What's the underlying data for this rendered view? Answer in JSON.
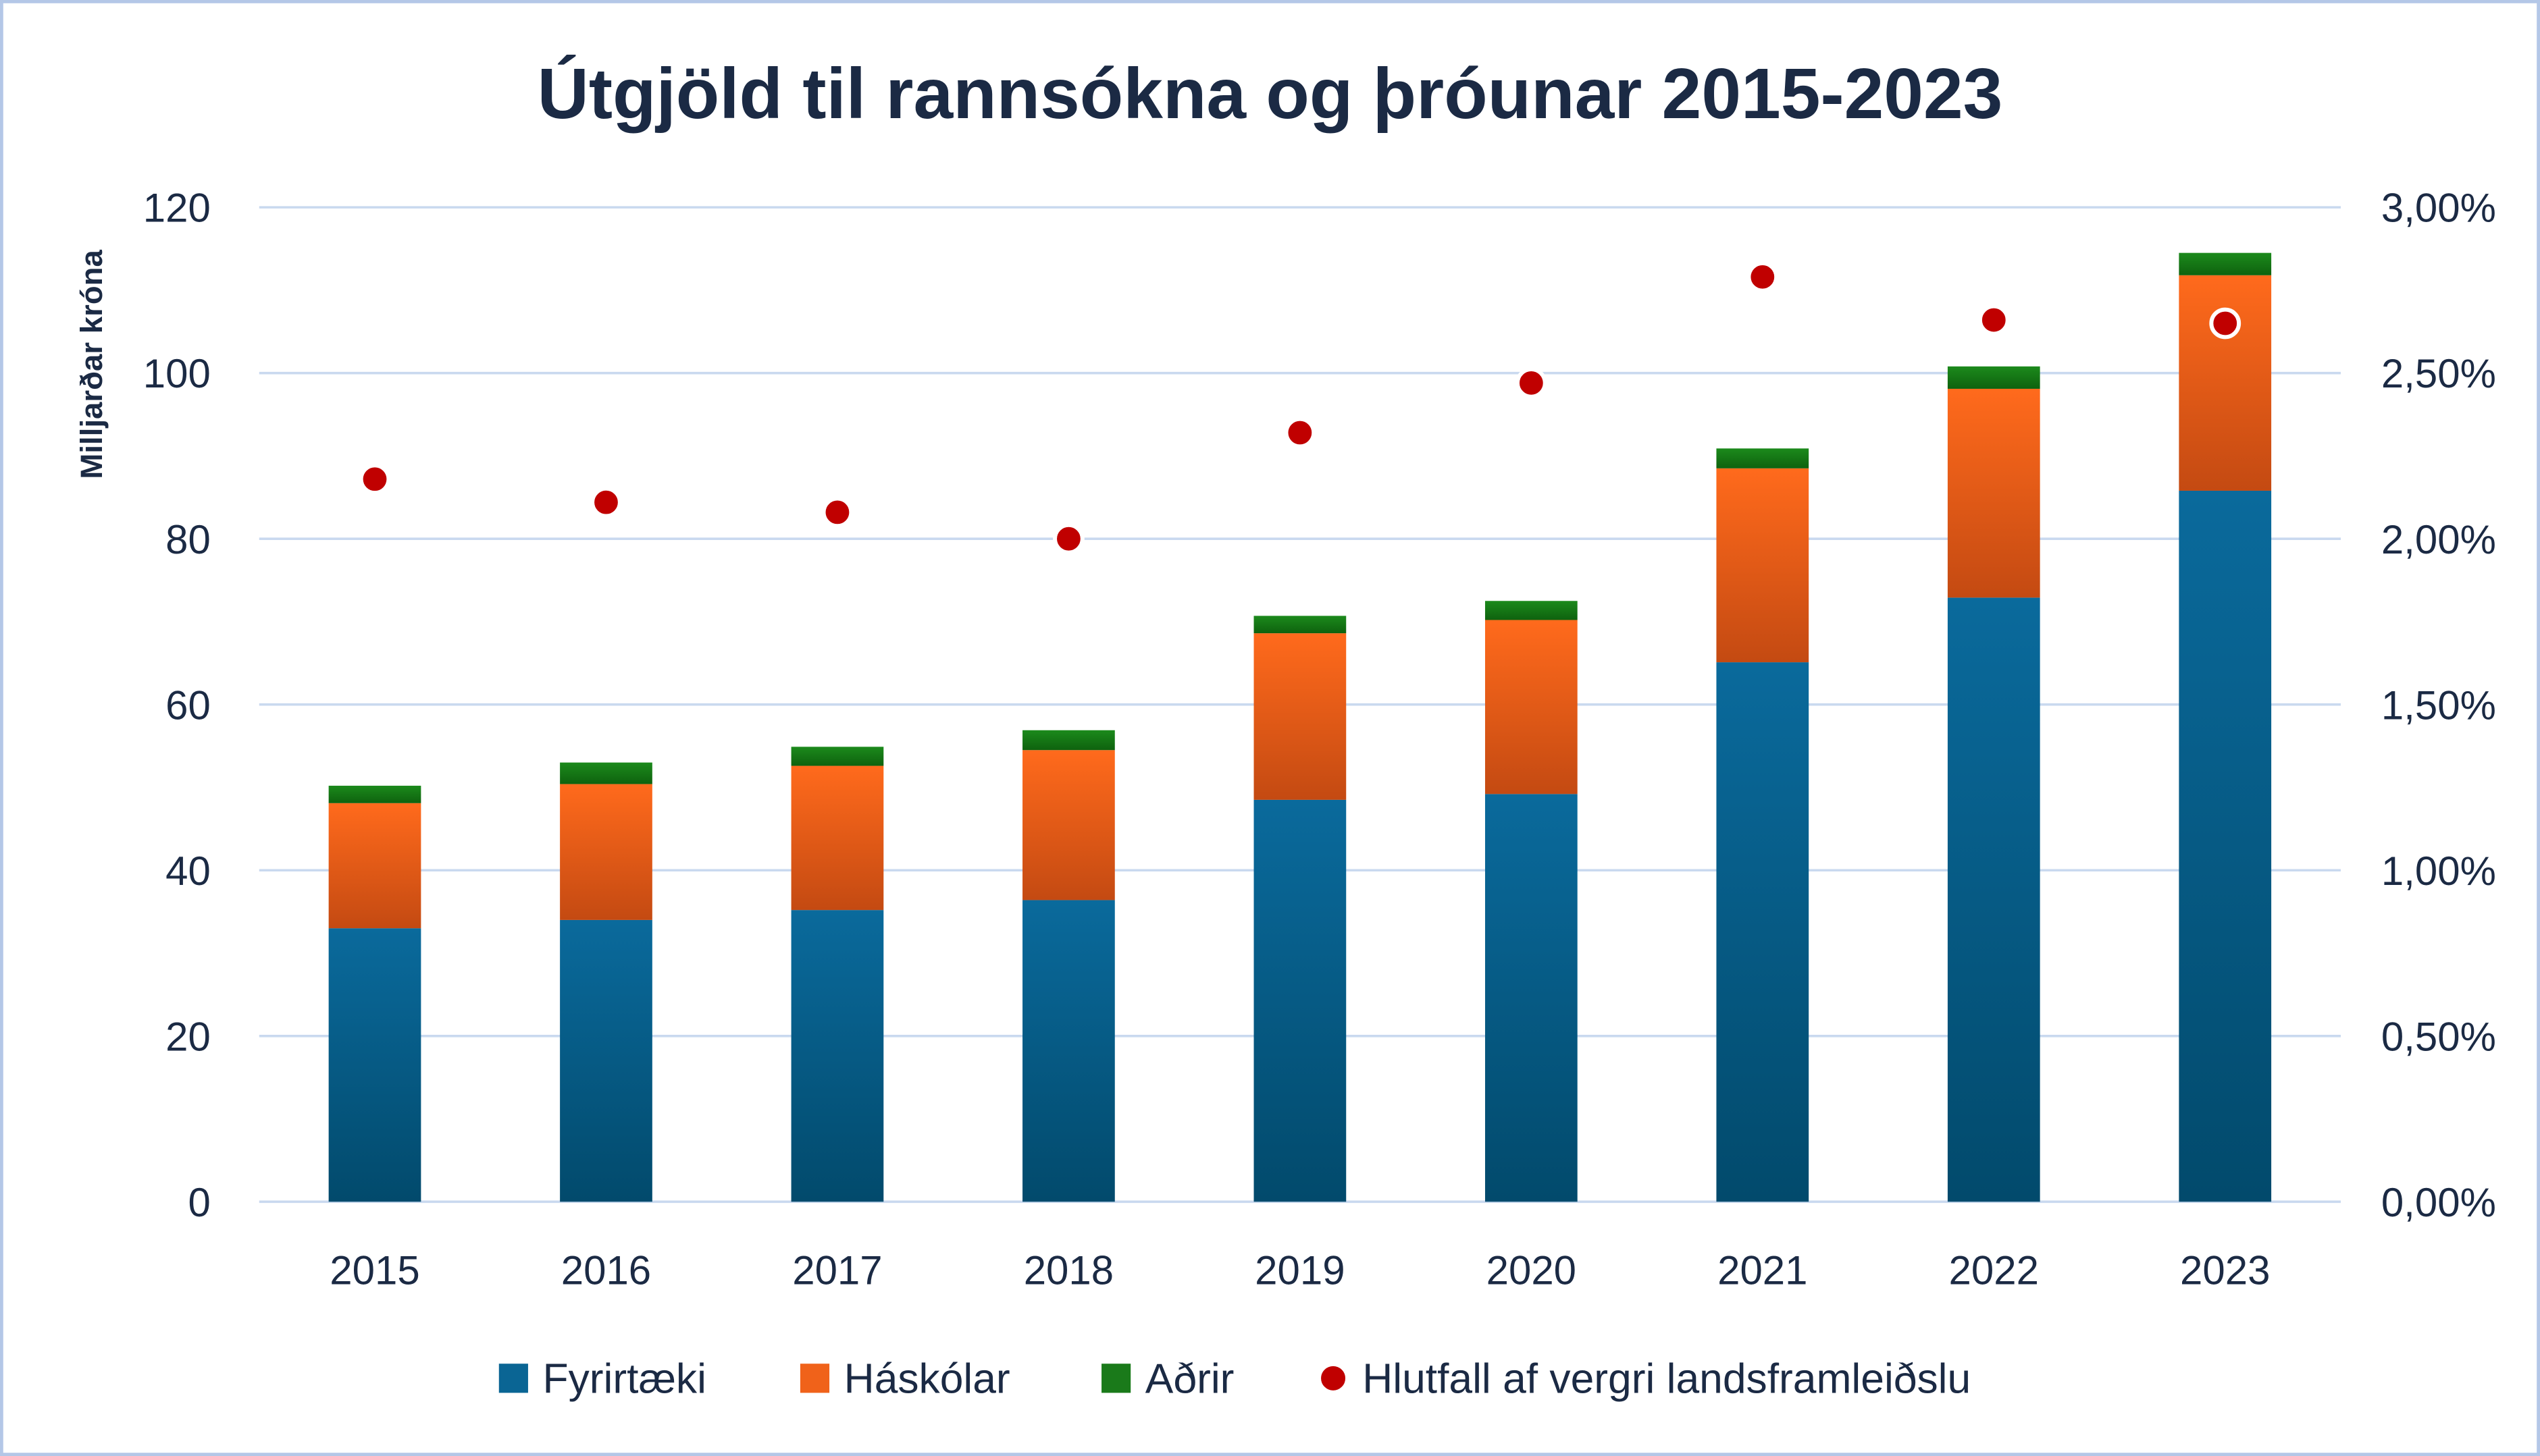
{
  "chart_data": {
    "type": "bar",
    "stacked": true,
    "title": "Útgjöld til rannsókna og þróunar 2015-2023",
    "ylabel": "Milljarðar króna",
    "ylim": [
      0,
      120
    ],
    "yticks": [
      "0",
      "20",
      "40",
      "60",
      "80",
      "100",
      "120"
    ],
    "y2lim": [
      0,
      3
    ],
    "y2ticks": [
      "0,00%",
      "0,50%",
      "1,00%",
      "1,50%",
      "2,00%",
      "2,50%",
      "3,00%"
    ],
    "grid": true,
    "legend_position": "bottom",
    "categories": [
      "2015",
      "2016",
      "2017",
      "2018",
      "2019",
      "2020",
      "2021",
      "2022",
      "2023"
    ],
    "series": [
      {
        "name": "Fyrirtæki",
        "type": "bar",
        "color": "#0a6594",
        "values": [
          33.0,
          34.0,
          35.2,
          36.4,
          48.5,
          49.2,
          65.1,
          72.9,
          85.8
        ]
      },
      {
        "name": "Háskólar",
        "type": "bar",
        "color": "#f0621a",
        "values": [
          15.1,
          16.4,
          17.4,
          18.1,
          20.1,
          21.0,
          23.4,
          25.2,
          26.0
        ]
      },
      {
        "name": "Aðrir",
        "type": "bar",
        "color": "#1a7a1a",
        "values": [
          2.1,
          2.6,
          2.3,
          2.4,
          2.1,
          2.3,
          2.4,
          2.7,
          2.7
        ]
      },
      {
        "name": "Hlutfall af vergri landsframleiðslu",
        "type": "scatter",
        "axis": "right",
        "color": "#c00000",
        "values": [
          2.18,
          2.11,
          2.08,
          2.0,
          2.32,
          2.47,
          2.79,
          2.66,
          2.65
        ]
      }
    ]
  }
}
